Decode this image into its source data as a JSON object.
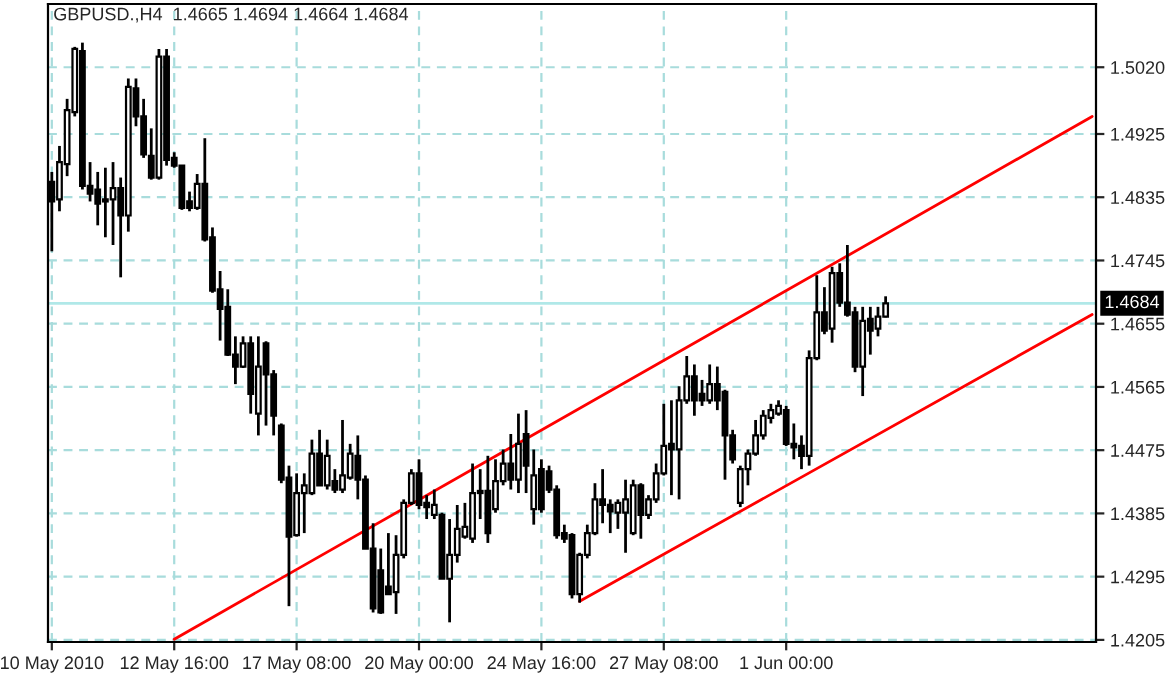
{
  "chart_data": {
    "type": "candlestick",
    "title": "GBPUSD.,H4  1.4665 1.4694 1.4664 1.4684",
    "categories": [
      "10 May 2010",
      null,
      null,
      null,
      null,
      null,
      null,
      null,
      null,
      null,
      null,
      null,
      null,
      null,
      null,
      null,
      "12 May 16:00",
      null,
      null,
      null,
      null,
      null,
      null,
      null,
      null,
      null,
      null,
      null,
      null,
      null,
      null,
      null,
      "17 May 08:00",
      null,
      null,
      null,
      null,
      null,
      null,
      null,
      null,
      null,
      null,
      null,
      null,
      null,
      null,
      null,
      "20 May 00:00",
      null,
      null,
      null,
      null,
      null,
      null,
      null,
      null,
      null,
      null,
      null,
      null,
      null,
      null,
      null,
      "24 May 16:00",
      null,
      null,
      null,
      null,
      null,
      null,
      null,
      null,
      null,
      null,
      null,
      null,
      null,
      null,
      null,
      "27 May 08:00",
      null,
      null,
      null,
      null,
      null,
      null,
      null,
      null,
      null,
      null,
      null,
      null,
      null,
      null,
      null,
      "1 Jun 00:00",
      null,
      null,
      null,
      null,
      null,
      null,
      null,
      null,
      null,
      null,
      null,
      null,
      null,
      null,
      null,
      null,
      null,
      null,
      null,
      null,
      null,
      null,
      null,
      null,
      null,
      null,
      null,
      null,
      null,
      null,
      null,
      null,
      null,
      null,
      null,
      null,
      null,
      null,
      null,
      null
    ],
    "ohlc": [
      [
        1.4857,
        1.4871,
        1.4758,
        1.4829
      ],
      [
        1.4832,
        1.4908,
        1.4815,
        1.4885
      ],
      [
        1.4882,
        1.4975,
        1.4865,
        1.4959
      ],
      [
        1.4956,
        1.5049,
        1.495,
        1.5046
      ],
      [
        1.5043,
        1.5055,
        1.4846,
        1.4851
      ],
      [
        1.4851,
        1.4885,
        1.4829,
        1.484
      ],
      [
        1.4846,
        1.4871,
        1.4795,
        1.4826
      ],
      [
        1.4832,
        1.4877,
        1.4778,
        1.4829
      ],
      [
        1.4832,
        1.4885,
        1.4767,
        1.4848
      ],
      [
        1.4848,
        1.4863,
        1.4721,
        1.4809
      ],
      [
        1.4809,
        1.5004,
        1.4786,
        1.4992
      ],
      [
        1.499,
        1.5004,
        1.4936,
        1.495
      ],
      [
        1.495,
        1.4975,
        1.4891,
        1.4896
      ],
      [
        1.4894,
        1.4933,
        1.486,
        1.4863
      ],
      [
        1.4863,
        1.5046,
        1.486,
        1.5035
      ],
      [
        1.5035,
        1.5046,
        1.488,
        1.4888
      ],
      [
        1.4891,
        1.4899,
        1.4877,
        1.488
      ],
      [
        1.488,
        1.488,
        1.4817,
        1.482
      ],
      [
        1.4829,
        1.4843,
        1.4815,
        1.482
      ],
      [
        1.482,
        1.4868,
        1.4817,
        1.4854
      ],
      [
        1.4854,
        1.4919,
        1.4772,
        1.4775
      ],
      [
        1.4778,
        1.4792,
        1.4699,
        1.4702
      ],
      [
        1.4704,
        1.473,
        1.4631,
        1.4676
      ],
      [
        1.4679,
        1.4704,
        1.4609,
        1.4611
      ],
      [
        1.4611,
        1.4637,
        1.4569,
        1.4594
      ],
      [
        1.4594,
        1.4637,
        1.4592,
        1.4627
      ],
      [
        1.4627,
        1.4637,
        1.4527,
        1.4555
      ],
      [
        1.4527,
        1.4637,
        1.4496,
        1.4594
      ],
      [
        1.4627,
        1.463,
        1.451,
        1.4583
      ],
      [
        1.4583,
        1.4589,
        1.4496,
        1.4524
      ],
      [
        1.451,
        1.4513,
        1.4428,
        1.4433
      ],
      [
        1.4436,
        1.4453,
        1.4253,
        1.4352
      ],
      [
        1.4354,
        1.4442,
        1.4352,
        1.4414
      ],
      [
        1.4414,
        1.4442,
        1.4357,
        1.4425
      ],
      [
        1.4414,
        1.449,
        1.4411,
        1.447
      ],
      [
        1.447,
        1.4504,
        1.4425,
        1.4425
      ],
      [
        1.4425,
        1.449,
        1.4419,
        1.4467
      ],
      [
        1.4431,
        1.4448,
        1.4414,
        1.4419
      ],
      [
        1.4419,
        1.4518,
        1.4414,
        1.4439
      ],
      [
        1.4436,
        1.4484,
        1.4433,
        1.447
      ],
      [
        1.4467,
        1.4496,
        1.4405,
        1.4433
      ],
      [
        1.4433,
        1.4439,
        1.4335,
        1.4335
      ],
      [
        1.4335,
        1.4371,
        1.4244,
        1.425
      ],
      [
        1.4304,
        1.4335,
        1.4242,
        1.4244
      ],
      [
        1.4281,
        1.4357,
        1.427,
        1.427
      ],
      [
        1.4273,
        1.4354,
        1.4242,
        1.4326
      ],
      [
        1.4326,
        1.4405,
        1.4321,
        1.44
      ],
      [
        1.44,
        1.4448,
        1.4397,
        1.4442
      ],
      [
        1.4442,
        1.4462,
        1.4391,
        1.4397
      ],
      [
        1.44,
        1.4411,
        1.4377,
        1.4394
      ],
      [
        1.4383,
        1.4419,
        1.4377,
        1.4397
      ],
      [
        1.4383,
        1.4386,
        1.4292,
        1.4292
      ],
      [
        1.4292,
        1.4377,
        1.423,
        1.4326
      ],
      [
        1.4326,
        1.4397,
        1.4315,
        1.4363
      ],
      [
        1.4352,
        1.44,
        1.4349,
        1.4366
      ],
      [
        1.4349,
        1.4456,
        1.4343,
        1.4414
      ],
      [
        1.4414,
        1.4448,
        1.4377,
        1.4417
      ],
      [
        1.4417,
        1.4467,
        1.4343,
        1.4357
      ],
      [
        1.4391,
        1.4462,
        1.4386,
        1.4431
      ],
      [
        1.4431,
        1.4476,
        1.4425,
        1.4456
      ],
      [
        1.4456,
        1.4498,
        1.4419,
        1.4433
      ],
      [
        1.4433,
        1.4527,
        1.4414,
        1.4484
      ],
      [
        1.4498,
        1.4532,
        1.4414,
        1.4453
      ],
      [
        1.4391,
        1.4476,
        1.4369,
        1.4439
      ],
      [
        1.4448,
        1.4462,
        1.4386,
        1.4391
      ],
      [
        1.4445,
        1.4453,
        1.4414,
        1.4419
      ],
      [
        1.4419,
        1.4425,
        1.4349,
        1.4354
      ],
      [
        1.4357,
        1.4369,
        1.4343,
        1.4349
      ],
      [
        1.4354,
        1.4357,
        1.4264,
        1.427
      ],
      [
        1.427,
        1.4329,
        1.4258,
        1.4326
      ],
      [
        1.4326,
        1.4369,
        1.4321,
        1.4357
      ],
      [
        1.4357,
        1.4428,
        1.4354,
        1.4405
      ],
      [
        1.4405,
        1.4448,
        1.4371,
        1.4397
      ],
      [
        1.4397,
        1.4405,
        1.4357,
        1.4388
      ],
      [
        1.4386,
        1.4405,
        1.4363,
        1.44
      ],
      [
        1.4386,
        1.4433,
        1.4329,
        1.4405
      ],
      [
        1.4357,
        1.4433,
        1.4354,
        1.4425
      ],
      [
        1.4425,
        1.4428,
        1.4349,
        1.4383
      ],
      [
        1.4383,
        1.4411,
        1.4377,
        1.4405
      ],
      [
        1.4405,
        1.4456,
        1.44,
        1.4442
      ],
      [
        1.4442,
        1.4541,
        1.4439,
        1.4481
      ],
      [
        1.4484,
        1.4546,
        1.4411,
        1.4476
      ],
      [
        1.4476,
        1.4566,
        1.4405,
        1.4546
      ],
      [
        1.4546,
        1.4609,
        1.4541,
        1.458
      ],
      [
        1.458,
        1.4597,
        1.4524,
        1.4546
      ],
      [
        1.4555,
        1.4575,
        1.4538,
        1.4546
      ],
      [
        1.4546,
        1.4597,
        1.4541,
        1.4569
      ],
      [
        1.4569,
        1.4594,
        1.4532,
        1.4546
      ],
      [
        1.4558,
        1.4561,
        1.4433,
        1.4496
      ],
      [
        1.4496,
        1.4504,
        1.4456,
        1.4462
      ],
      [
        1.44,
        1.4453,
        1.4394,
        1.4448
      ],
      [
        1.4448,
        1.4476,
        1.4425,
        1.447
      ],
      [
        1.447,
        1.4518,
        1.4467,
        1.4496
      ],
      [
        1.4496,
        1.4532,
        1.449,
        1.4524
      ],
      [
        1.4521,
        1.4541,
        1.4513,
        1.4532
      ],
      [
        1.4527,
        1.4546,
        1.4524,
        1.4538
      ],
      [
        1.4532,
        1.4538,
        1.4481,
        1.4484
      ],
      [
        1.4484,
        1.4513,
        1.4462,
        1.4479
      ],
      [
        1.4481,
        1.4496,
        1.4448,
        1.4467
      ],
      [
        1.4467,
        1.4617,
        1.4453,
        1.4606
      ],
      [
        1.4606,
        1.4724,
        1.4603,
        1.4671
      ],
      [
        1.4671,
        1.4707,
        1.464,
        1.4645
      ],
      [
        1.4648,
        1.4736,
        1.4628,
        1.4727
      ],
      [
        1.4727,
        1.4741,
        1.4679,
        1.4685
      ],
      [
        1.4685,
        1.4767,
        1.4665,
        1.4668
      ],
      [
        1.4671,
        1.4679,
        1.4586,
        1.4594
      ],
      [
        1.4594,
        1.4679,
        1.4552,
        1.4659
      ],
      [
        1.4662,
        1.4679,
        1.4611,
        1.4645
      ],
      [
        1.4648,
        1.4679,
        1.4637,
        1.4665
      ],
      [
        1.4665,
        1.4694,
        1.4664,
        1.4684
      ],
      null,
      null,
      null,
      null,
      null,
      null,
      null,
      null,
      null,
      null,
      null,
      null,
      null,
      null,
      null,
      null,
      null,
      null,
      null,
      null,
      null,
      null,
      null,
      null,
      null,
      null,
      null
    ],
    "series": [
      {
        "type": "line",
        "color": "#ff0000",
        "values": [
          null,
          null,
          null,
          null,
          null,
          null,
          null,
          null,
          null,
          null,
          null,
          null,
          null,
          null,
          null,
          null,
          1.4206,
          null,
          null,
          null,
          null,
          null,
          null,
          null,
          null,
          null,
          null,
          null,
          null,
          null,
          null,
          null,
          null,
          null,
          null,
          null,
          null,
          null,
          null,
          null,
          null,
          null,
          null,
          null,
          null,
          null,
          null,
          null,
          null,
          null,
          null,
          null,
          null,
          null,
          null,
          null,
          null,
          null,
          null,
          null,
          null,
          null,
          null,
          null,
          null,
          null,
          null,
          null,
          null,
          null,
          null,
          null,
          null,
          null,
          null,
          null,
          null,
          null,
          null,
          null,
          null,
          null,
          null,
          null,
          null,
          null,
          null,
          null,
          null,
          null,
          null,
          null,
          null,
          null,
          null,
          null,
          null,
          null,
          null,
          null,
          null,
          null,
          null,
          null,
          null,
          null,
          null,
          null,
          null,
          null,
          null,
          null,
          null,
          null,
          null,
          null,
          null,
          null,
          null,
          null,
          null,
          null,
          null,
          null,
          null,
          null,
          null,
          null,
          null,
          null,
          null,
          null,
          null,
          null,
          null,
          null,
          1.495
        ]
      },
      {
        "type": "line",
        "color": "#ff0000",
        "values": [
          null,
          null,
          null,
          null,
          null,
          null,
          null,
          null,
          null,
          null,
          null,
          null,
          null,
          null,
          null,
          null,
          null,
          null,
          null,
          null,
          null,
          null,
          null,
          null,
          null,
          null,
          null,
          null,
          null,
          null,
          null,
          null,
          null,
          null,
          null,
          null,
          null,
          null,
          null,
          null,
          null,
          null,
          null,
          null,
          null,
          null,
          null,
          null,
          null,
          null,
          null,
          null,
          null,
          null,
          null,
          null,
          null,
          null,
          null,
          null,
          null,
          null,
          null,
          null,
          null,
          null,
          null,
          null,
          null,
          1.426,
          null,
          null,
          null,
          null,
          null,
          null,
          null,
          null,
          null,
          null,
          null,
          null,
          null,
          null,
          null,
          null,
          null,
          null,
          null,
          null,
          null,
          null,
          null,
          null,
          null,
          null,
          null,
          null,
          null,
          null,
          null,
          null,
          null,
          null,
          null,
          null,
          null,
          null,
          null,
          null,
          null,
          null,
          null,
          null,
          null,
          null,
          null,
          null,
          null,
          null,
          null,
          null,
          null,
          null,
          null,
          null,
          null,
          null,
          null,
          null,
          null,
          null,
          null,
          null,
          null,
          null,
          1.4668
        ]
      }
    ],
    "ylim": [
      1.4202,
      1.511
    ],
    "yticks": [
      {
        "value": 1.4205,
        "label": "1.4205"
      },
      {
        "value": 1.4295,
        "label": "1.4295"
      },
      {
        "value": 1.4385,
        "label": "1.4385"
      },
      {
        "value": 1.4475,
        "label": "1.4475"
      },
      {
        "value": 1.4565,
        "label": "1.4565"
      },
      {
        "value": 1.4655,
        "label": "1.4655"
      },
      {
        "value": 1.4745,
        "label": "1.4745"
      },
      {
        "value": 1.4835,
        "label": "1.4835"
      },
      {
        "value": 1.4925,
        "label": "1.4925"
      },
      {
        "value": 1.502,
        "label": "1.5020"
      }
    ],
    "ref_lines": [
      {
        "axis": "y",
        "value": 1.4684,
        "label": "1.4684",
        "color": "#b0e8e8"
      }
    ],
    "grid": true
  }
}
